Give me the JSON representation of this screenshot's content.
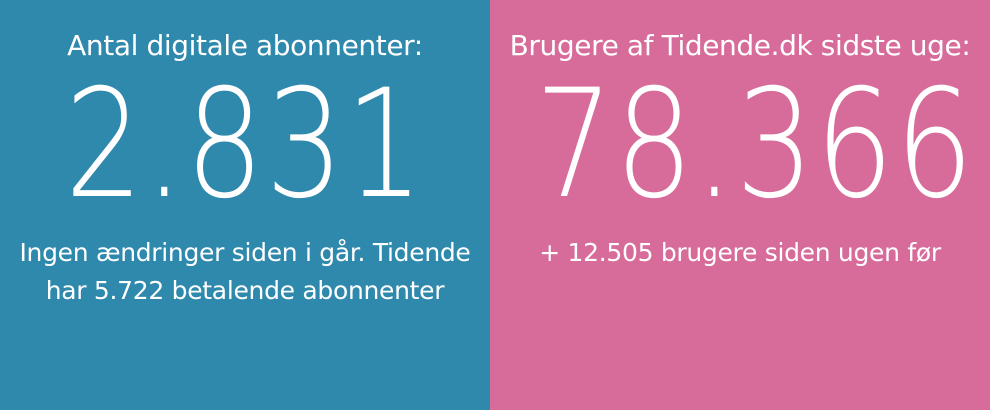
{
  "left": {
    "heading": "Antal digitale abonnenter:",
    "value": "2.831",
    "sub_line1": "Ingen ændringer siden i går. Tidende",
    "sub_line2": "har 5.722 betalende abonnenter",
    "background": "#2e89ad"
  },
  "right": {
    "heading": "Brugere af Tidende.dk sidste uge:",
    "value": "78.366",
    "sub_line1": "+ 12.505 brugere siden ugen før",
    "background": "#d76c9b"
  },
  "colors": {
    "text": "#ffffff"
  }
}
